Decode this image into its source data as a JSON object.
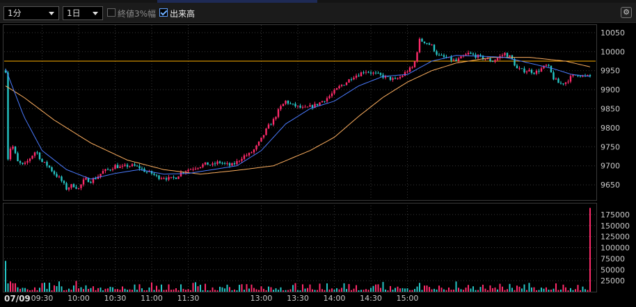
{
  "toolbar": {
    "interval_select": "1分",
    "range_select": "1日",
    "option_close_3pct": {
      "label": "終値3%幅",
      "checked": false
    },
    "option_volume": {
      "label": "出来高",
      "checked": true
    },
    "settings_icon": "gear-icon"
  },
  "colors": {
    "background": "#000000",
    "up_candle": "#ff2a6a",
    "down_candle": "#26c6c6",
    "volume_up": "#ff2a6a",
    "volume_down": "#26c6c6",
    "ma_short": "#4a7bff",
    "ma_long": "#ffb060",
    "reference_line": "#ffb000",
    "grid": "#3a3a3a"
  },
  "chart_data": [
    {
      "type": "candlestick",
      "date": "07/09",
      "x_tick_labels": [
        "09:30",
        "10:00",
        "10:30",
        "11:00",
        "11:30",
        "13:00",
        "13:30",
        "14:00",
        "14:30",
        "15:00"
      ],
      "y_tick_labels": [
        "10050",
        "10000",
        "9950",
        "9900",
        "9850",
        "9800",
        "9750",
        "9700",
        "9650"
      ],
      "ylim": [
        9610,
        10070
      ],
      "reference_line": 9975,
      "price_path": [
        [
          0,
          9950
        ],
        [
          2,
          9720
        ],
        [
          5,
          9760
        ],
        [
          10,
          9710
        ],
        [
          15,
          9700
        ],
        [
          20,
          9720
        ],
        [
          25,
          9740
        ],
        [
          30,
          9710
        ],
        [
          35,
          9700
        ],
        [
          40,
          9680
        ],
        [
          45,
          9665
        ],
        [
          50,
          9640
        ],
        [
          55,
          9650
        ],
        [
          60,
          9640
        ],
        [
          65,
          9665
        ],
        [
          70,
          9660
        ],
        [
          75,
          9670
        ],
        [
          80,
          9685
        ],
        [
          85,
          9690
        ],
        [
          90,
          9700
        ],
        [
          95,
          9695
        ],
        [
          100,
          9700
        ],
        [
          105,
          9700
        ],
        [
          110,
          9695
        ],
        [
          115,
          9685
        ],
        [
          120,
          9680
        ],
        [
          125,
          9670
        ],
        [
          130,
          9670
        ],
        [
          135,
          9665
        ],
        [
          140,
          9670
        ],
        [
          145,
          9685
        ],
        [
          150,
          9690
        ],
        [
          155,
          9695
        ],
        [
          160,
          9700
        ],
        [
          165,
          9705
        ],
        [
          170,
          9702
        ],
        [
          175,
          9710
        ],
        [
          180,
          9705
        ],
        [
          185,
          9700
        ],
        [
          190,
          9710
        ],
        [
          195,
          9725
        ],
        [
          200,
          9730
        ],
        [
          205,
          9745
        ],
        [
          210,
          9770
        ],
        [
          215,
          9800
        ],
        [
          220,
          9820
        ],
        [
          225,
          9850
        ],
        [
          230,
          9870
        ],
        [
          235,
          9860
        ],
        [
          240,
          9855
        ],
        [
          245,
          9850
        ],
        [
          250,
          9855
        ],
        [
          255,
          9860
        ],
        [
          260,
          9870
        ],
        [
          265,
          9880
        ],
        [
          270,
          9895
        ],
        [
          275,
          9910
        ],
        [
          280,
          9920
        ],
        [
          285,
          9935
        ],
        [
          290,
          9940
        ],
        [
          295,
          9950
        ],
        [
          300,
          9945
        ],
        [
          305,
          9940
        ],
        [
          310,
          9935
        ],
        [
          315,
          9930
        ],
        [
          320,
          9925
        ],
        [
          325,
          9935
        ],
        [
          330,
          9950
        ],
        [
          335,
          9960
        ],
        [
          340,
          10030
        ],
        [
          345,
          10025
        ],
        [
          350,
          10015
        ],
        [
          355,
          9990
        ],
        [
          360,
          9985
        ],
        [
          365,
          9980
        ],
        [
          370,
          9975
        ],
        [
          375,
          9985
        ],
        [
          380,
          9995
        ],
        [
          385,
          9990
        ],
        [
          390,
          9985
        ],
        [
          395,
          9980
        ],
        [
          400,
          9975
        ],
        [
          405,
          9985
        ],
        [
          410,
          9995
        ],
        [
          415,
          9985
        ],
        [
          420,
          9955
        ],
        [
          425,
          9950
        ],
        [
          430,
          9950
        ],
        [
          435,
          9945
        ],
        [
          440,
          9955
        ],
        [
          445,
          9965
        ],
        [
          450,
          9930
        ],
        [
          455,
          9915
        ],
        [
          460,
          9920
        ],
        [
          465,
          9935
        ],
        [
          470,
          9940
        ],
        [
          475,
          9935
        ],
        [
          480,
          9935
        ]
      ],
      "ma_short_path": [
        [
          0,
          9955
        ],
        [
          15,
          9830
        ],
        [
          30,
          9740
        ],
        [
          50,
          9690
        ],
        [
          70,
          9665
        ],
        [
          90,
          9680
        ],
        [
          110,
          9690
        ],
        [
          130,
          9678
        ],
        [
          150,
          9680
        ],
        [
          170,
          9690
        ],
        [
          190,
          9700
        ],
        [
          210,
          9740
        ],
        [
          230,
          9810
        ],
        [
          250,
          9850
        ],
        [
          270,
          9870
        ],
        [
          290,
          9910
        ],
        [
          310,
          9935
        ],
        [
          330,
          9940
        ],
        [
          350,
          9975
        ],
        [
          370,
          9990
        ],
        [
          390,
          9988
        ],
        [
          410,
          9985
        ],
        [
          430,
          9970
        ],
        [
          450,
          9955
        ],
        [
          465,
          9940
        ],
        [
          480,
          9935
        ]
      ],
      "ma_long_path": [
        [
          0,
          9910
        ],
        [
          15,
          9880
        ],
        [
          40,
          9820
        ],
        [
          70,
          9760
        ],
        [
          100,
          9715
        ],
        [
          130,
          9690
        ],
        [
          160,
          9678
        ],
        [
          190,
          9688
        ],
        [
          220,
          9700
        ],
        [
          250,
          9740
        ],
        [
          270,
          9775
        ],
        [
          290,
          9830
        ],
        [
          310,
          9880
        ],
        [
          330,
          9920
        ],
        [
          350,
          9950
        ],
        [
          370,
          9970
        ],
        [
          400,
          9985
        ],
        [
          430,
          9985
        ],
        [
          460,
          9975
        ],
        [
          480,
          9960
        ]
      ]
    },
    {
      "type": "bar",
      "name": "出来高",
      "y_tick_labels": [
        "175000",
        "150000",
        "125000",
        "100000",
        "75000",
        "50000",
        "25000"
      ],
      "ylim": [
        0,
        200000
      ],
      "notable_bars": [
        [
          0,
          70000
        ],
        [
          145,
          25000
        ],
        [
          215,
          45000
        ],
        [
          340,
          20000
        ],
        [
          365,
          50000
        ],
        [
          430,
          20000
        ],
        [
          480,
          190000
        ]
      ]
    }
  ]
}
